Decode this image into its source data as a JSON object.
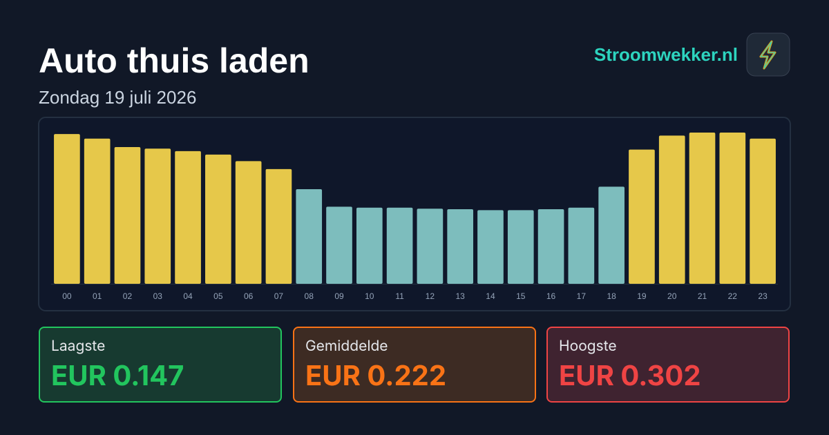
{
  "chart_data": {
    "type": "bar",
    "title": "Auto thuis laden",
    "subtitle": "Zondag 19 juli 2026",
    "categories": [
      "00",
      "01",
      "02",
      "03",
      "04",
      "05",
      "06",
      "07",
      "08",
      "09",
      "10",
      "11",
      "12",
      "13",
      "14",
      "15",
      "16",
      "17",
      "18",
      "19",
      "20",
      "21",
      "22",
      "23"
    ],
    "values": [
      0.299,
      0.29,
      0.273,
      0.27,
      0.265,
      0.258,
      0.245,
      0.229,
      0.189,
      0.154,
      0.152,
      0.152,
      0.15,
      0.149,
      0.147,
      0.147,
      0.149,
      0.152,
      0.194,
      0.268,
      0.296,
      0.302,
      0.302,
      0.29
    ],
    "colors": [
      "#e6c84a",
      "#e6c84a",
      "#e6c84a",
      "#e6c84a",
      "#e6c84a",
      "#e6c84a",
      "#e6c84a",
      "#e6c84a",
      "#7dbdbd",
      "#7dbdbd",
      "#7dbdbd",
      "#7dbdbd",
      "#7dbdbd",
      "#7dbdbd",
      "#7dbdbd",
      "#7dbdbd",
      "#7dbdbd",
      "#7dbdbd",
      "#7dbdbd",
      "#e6c84a",
      "#e6c84a",
      "#e6c84a",
      "#e6c84a",
      "#e6c84a"
    ]
  },
  "brand": "Stroomwekker.nl",
  "stats": [
    {
      "label": "Laagste",
      "value": "EUR 0.147"
    },
    {
      "label": "Gemiddelde",
      "value": "EUR 0.222"
    },
    {
      "label": "Hoogste",
      "value": "EUR 0.302"
    }
  ]
}
